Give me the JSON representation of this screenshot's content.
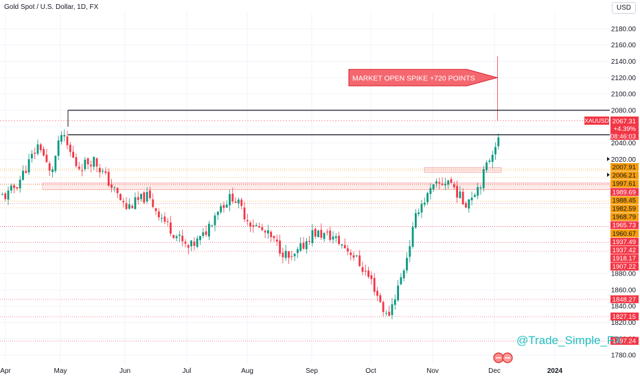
{
  "header": {
    "symbol": "Gold Spot / U.S. Dollar, 1D, FX",
    "currency": "USD"
  },
  "watermark": "@Trade_Simple_FX",
  "chart_data": {
    "type": "candlestick",
    "y_range": [
      1770,
      2200
    ],
    "y_ticks": [
      1780,
      1800,
      1820,
      1840,
      1860,
      1880,
      2020,
      2040,
      2060,
      2080,
      2100,
      2120,
      2140,
      2160,
      2180
    ],
    "x_labels": [
      "Apr",
      "May",
      "Jun",
      "Jul",
      "Aug",
      "Sep",
      "Oct",
      "Nov",
      "Dec",
      "2024"
    ],
    "annotation": {
      "text": "MARKET OPEN SPIKE +720 POINTS",
      "spike_high": 2146
    },
    "resistance_lines": [
      2080,
      2050
    ],
    "last_price": {
      "symbol": "XAUUSD",
      "price": "2067.31",
      "change": "+4.39%",
      "countdown": "08:46:03"
    },
    "levels": [
      {
        "label": "2007.91",
        "value": 2007.91,
        "color": "#f59d0b"
      },
      {
        "label": "2006.21",
        "value": 2006.21,
        "color": "#f59d0b"
      },
      {
        "label": "1997.61",
        "value": 1997.61,
        "color": "#f59d0b"
      },
      {
        "label": "1989.69",
        "value": 1989.69,
        "color": "#f23645"
      },
      {
        "label": "1988.45",
        "value": 1988.45,
        "color": "#f59d0b"
      },
      {
        "label": "1982.59",
        "value": 1982.59,
        "color": "#f59d0b"
      },
      {
        "label": "1968.79",
        "value": 1968.79,
        "color": "#f59d0b"
      },
      {
        "label": "1965.73",
        "value": 1965.73,
        "color": "#f23645"
      },
      {
        "label": "1960.67",
        "value": 1960.67,
        "color": "#f59d0b"
      },
      {
        "label": "1937.49",
        "value": 1937.49,
        "color": "#f23645"
      },
      {
        "label": "1937.42",
        "value": 1937.42,
        "color": "#f23645"
      },
      {
        "label": "1918.17",
        "value": 1918.17,
        "color": "#f23645"
      },
      {
        "label": "1907.22",
        "value": 1907.22,
        "color": "#f23645"
      },
      {
        "label": "1848.27",
        "value": 1848.27,
        "color": "#f23645"
      },
      {
        "label": "1827.15",
        "value": 1827.15,
        "color": "#f23645"
      },
      {
        "label": "1797.24",
        "value": 1797.24,
        "color": "#f23645"
      }
    ],
    "colors": {
      "up": "#089981",
      "down": "#f23645",
      "axis_text": "#131722",
      "grid": "#f0f3fa"
    },
    "close_path": [
      [
        "Apr",
        1975
      ],
      [
        "Apr",
        1990
      ],
      [
        "Apr",
        2015
      ],
      [
        "Apr",
        2040
      ],
      [
        "Apr",
        2000
      ],
      [
        "May",
        2050
      ],
      [
        "May",
        2010
      ],
      [
        "May",
        2020
      ],
      [
        "May",
        1990
      ],
      [
        "Jun",
        1960
      ],
      [
        "Jun",
        1975
      ],
      [
        "Jun",
        1940
      ],
      [
        "Jul",
        1910
      ],
      [
        "Jul",
        1925
      ],
      [
        "Jul",
        1960
      ],
      [
        "Jul",
        1975
      ],
      [
        "Aug",
        1945
      ],
      [
        "Aug",
        1925
      ],
      [
        "Aug",
        1895
      ],
      [
        "Sep",
        1930
      ],
      [
        "Sep",
        1925
      ],
      [
        "Sep",
        1905
      ],
      [
        "Oct",
        1870
      ],
      [
        "Oct",
        1825
      ],
      [
        "Oct",
        1880
      ],
      [
        "Oct",
        1960
      ],
      [
        "Nov",
        1985
      ],
      [
        "Nov",
        1995
      ],
      [
        "Nov",
        1965
      ],
      [
        "Nov",
        1990
      ],
      [
        "Dec",
        2040
      ],
      [
        "Dec",
        2067
      ]
    ]
  }
}
